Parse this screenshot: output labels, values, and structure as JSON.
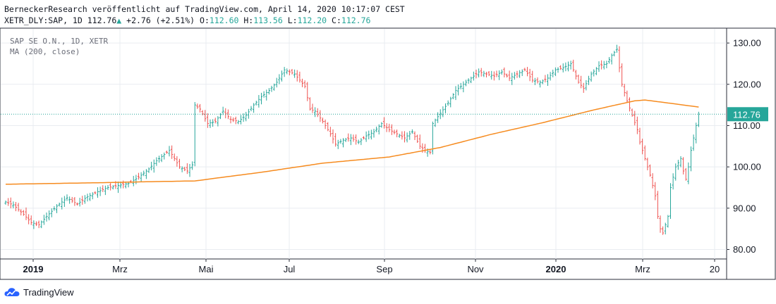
{
  "header": {
    "line1": "BerneckerResearch veröffentlicht auf TradingView.com, April 14, 2020 10:17:07 CEST",
    "symbol": "XETR_DLY:SAP, 1D",
    "last": "112.76",
    "change": "+2.76 (+2.51%)",
    "o_label": "O:",
    "o": "112.60",
    "h_label": "H:",
    "h": "113.56",
    "l_label": "L:",
    "l": "112.20",
    "c_label": "C:",
    "c": "112.76"
  },
  "legend": {
    "line1": "SAP SE O.N., 1D, XETR",
    "line2": "MA (200, close)"
  },
  "price_label": "112.76",
  "footer": {
    "brand": "TradingView"
  },
  "colors": {
    "up": "#26a69a",
    "down": "#ef5350",
    "ma": "#f68b1f",
    "grid": "#e9ecf1",
    "axis": "#131722"
  },
  "chart_data": {
    "type": "candlestick",
    "x_ticks": [
      {
        "label": "2019",
        "bold": true
      },
      {
        "label": "Mrz",
        "bold": false
      },
      {
        "label": "Mai",
        "bold": false
      },
      {
        "label": "Jul",
        "bold": false
      },
      {
        "label": "Sep",
        "bold": false
      },
      {
        "label": "Nov",
        "bold": false
      },
      {
        "label": "2020",
        "bold": true
      },
      {
        "label": "Mrz",
        "bold": false
      },
      {
        "label": "20",
        "bold": false
      }
    ],
    "y_ticks": [
      "130.00",
      "120.00",
      "110.00",
      "100.00",
      "90.00",
      "80.00"
    ],
    "ylim": [
      77.7,
      133.6
    ],
    "last_price": 112.76,
    "price_anchors": [
      [
        0,
        91.5
      ],
      [
        3,
        90.8
      ],
      [
        7,
        88.5
      ],
      [
        10,
        86.5
      ],
      [
        13,
        86.0
      ],
      [
        16,
        88.0
      ],
      [
        20,
        90.5
      ],
      [
        24,
        92.5
      ],
      [
        28,
        91.0
      ],
      [
        32,
        92.8
      ],
      [
        36,
        94.0
      ],
      [
        40,
        95.0
      ],
      [
        44,
        95.5
      ],
      [
        48,
        96.0
      ],
      [
        52,
        97.5
      ],
      [
        56,
        99.5
      ],
      [
        59,
        101.5
      ],
      [
        62,
        103.0
      ],
      [
        64,
        104.0
      ],
      [
        66,
        102.0
      ],
      [
        68,
        100.0
      ],
      [
        71,
        99.0
      ],
      [
        73,
        100.5
      ],
      [
        74,
        115.0
      ],
      [
        76,
        114.0
      ],
      [
        79,
        110.5
      ],
      [
        82,
        111.0
      ],
      [
        85,
        113.5
      ],
      [
        88,
        111.5
      ],
      [
        91,
        111.0
      ],
      [
        94,
        112.5
      ],
      [
        97,
        115.0
      ],
      [
        100,
        117.0
      ],
      [
        103,
        118.5
      ],
      [
        106,
        120.5
      ],
      [
        109,
        123.5
      ],
      [
        111,
        123.0
      ],
      [
        113,
        122.5
      ],
      [
        115,
        121.0
      ],
      [
        117,
        119.5
      ],
      [
        119,
        114.0
      ],
      [
        121,
        113.5
      ],
      [
        124,
        111.0
      ],
      [
        127,
        108.0
      ],
      [
        129,
        105.5
      ],
      [
        132,
        106.5
      ],
      [
        135,
        107.0
      ],
      [
        138,
        106.0
      ],
      [
        141,
        107.5
      ],
      [
        144,
        108.5
      ],
      [
        147,
        110.5
      ],
      [
        150,
        109.0
      ],
      [
        153,
        108.0
      ],
      [
        156,
        107.0
      ],
      [
        159,
        108.5
      ],
      [
        162,
        105.0
      ],
      [
        164,
        104.0
      ],
      [
        166,
        103.5
      ],
      [
        167,
        110.5
      ],
      [
        170,
        113.0
      ],
      [
        173,
        115.5
      ],
      [
        176,
        118.5
      ],
      [
        179,
        120.0
      ],
      [
        182,
        121.5
      ],
      [
        185,
        123.0
      ],
      [
        188,
        122.5
      ],
      [
        191,
        122.0
      ],
      [
        194,
        123.0
      ],
      [
        197,
        121.5
      ],
      [
        200,
        122.5
      ],
      [
        203,
        123.5
      ],
      [
        206,
        121.0
      ],
      [
        209,
        120.5
      ],
      [
        212,
        121.5
      ],
      [
        215,
        123.5
      ],
      [
        218,
        124.0
      ],
      [
        221,
        125.0
      ],
      [
        224,
        120.5
      ],
      [
        226,
        119.0
      ],
      [
        229,
        122.5
      ],
      [
        232,
        124.5
      ],
      [
        235,
        125.0
      ],
      [
        237,
        127.0
      ],
      [
        239,
        128.5
      ],
      [
        240,
        124.0
      ],
      [
        241,
        120.0
      ],
      [
        243,
        116.0
      ],
      [
        245,
        112.5
      ],
      [
        247,
        109.0
      ],
      [
        248,
        106.0
      ],
      [
        250,
        102.0
      ],
      [
        252,
        98.0
      ],
      [
        254,
        93.0
      ],
      [
        255,
        88.0
      ],
      [
        256,
        85.0
      ],
      [
        257,
        84.0
      ],
      [
        259,
        88.0
      ],
      [
        260,
        95.0
      ],
      [
        262,
        100.0
      ],
      [
        264,
        102.0
      ],
      [
        265,
        99.0
      ],
      [
        266,
        97.0
      ],
      [
        267,
        100.0
      ],
      [
        268,
        104.0
      ],
      [
        269,
        107.0
      ],
      [
        270,
        110.0
      ],
      [
        271,
        112.76
      ]
    ],
    "ma_anchors": [
      [
        0,
        95.8
      ],
      [
        20,
        96.0
      ],
      [
        40,
        96.2
      ],
      [
        55,
        96.4
      ],
      [
        74,
        96.6
      ],
      [
        100,
        98.7
      ],
      [
        124,
        100.9
      ],
      [
        150,
        102.4
      ],
      [
        170,
        104.7
      ],
      [
        190,
        107.9
      ],
      [
        210,
        110.7
      ],
      [
        230,
        113.8
      ],
      [
        246,
        116.0
      ],
      [
        250,
        116.2
      ],
      [
        271,
        114.5
      ]
    ]
  }
}
